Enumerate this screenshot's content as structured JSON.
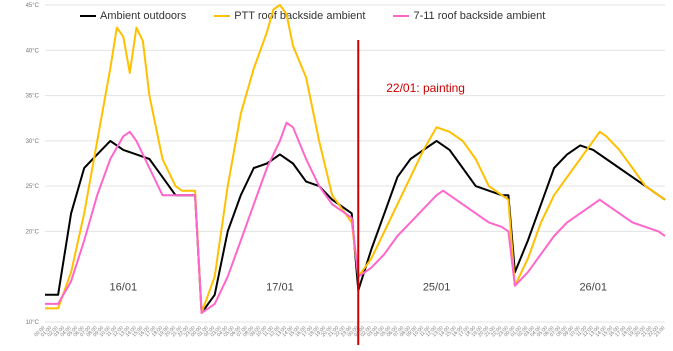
{
  "chart_data": {
    "type": "line",
    "legend_position": "top",
    "grid": true,
    "ylim": [
      10,
      45
    ],
    "y_ticks": [
      "10°C",
      "20°C",
      "25°C",
      "30°C",
      "35°C",
      "40°C",
      "45°C"
    ],
    "y_tick_values": [
      10,
      20,
      25,
      30,
      35,
      40,
      45
    ],
    "x_tick_labels": [
      "00:00",
      "01:00",
      "02:00",
      "03:00",
      "04:00",
      "05:00",
      "06:00",
      "07:00",
      "08:00",
      "09:00",
      "10:00",
      "11:00",
      "12:00",
      "13:00",
      "14:00",
      "15:00",
      "16:00",
      "17:00",
      "18:00",
      "19:00",
      "20:00",
      "21:00",
      "22:00",
      "23:00",
      "00:00",
      "01:00",
      "02:00",
      "03:00",
      "04:00",
      "05:00",
      "06:00",
      "07:00",
      "08:00",
      "09:00",
      "10:00",
      "11:00",
      "12:00",
      "13:00",
      "14:00",
      "15:00",
      "16:00",
      "17:00",
      "18:00",
      "19:00",
      "20:00",
      "21:00",
      "22:00",
      "23:00",
      "00:00",
      "01:00",
      "02:00",
      "03:00",
      "04:00",
      "05:00",
      "06:00",
      "07:00",
      "08:00",
      "09:00",
      "10:00",
      "11:00",
      "12:00",
      "13:00",
      "14:00",
      "15:00",
      "16:00",
      "17:00",
      "18:00",
      "19:00",
      "20:00",
      "21:00",
      "22:00",
      "23:00",
      "00:00",
      "01:00",
      "02:00",
      "03:00",
      "04:00",
      "05:00",
      "06:00",
      "07:00",
      "08:00",
      "09:00",
      "10:00",
      "11:00",
      "12:00",
      "13:00",
      "14:00",
      "15:00",
      "16:00",
      "17:00",
      "18:00",
      "19:00",
      "20:00",
      "21:00",
      "22:00",
      "23:00"
    ],
    "day_labels": [
      {
        "label": "16/01",
        "x": 12
      },
      {
        "label": "17/01",
        "x": 36
      },
      {
        "label": "25/01",
        "x": 60
      },
      {
        "label": "26/01",
        "x": 84
      }
    ],
    "series": [
      {
        "name": "Ambient outdoors",
        "color": "#000000",
        "points": [
          [
            0,
            13
          ],
          [
            2,
            13
          ],
          [
            4,
            22
          ],
          [
            6,
            27
          ],
          [
            8,
            28.5
          ],
          [
            10,
            30
          ],
          [
            12,
            29
          ],
          [
            14,
            28.5
          ],
          [
            16,
            28
          ],
          [
            18,
            26
          ],
          [
            20,
            24
          ],
          [
            22,
            24
          ],
          [
            23,
            24
          ],
          [
            24,
            11
          ],
          [
            26,
            13
          ],
          [
            28,
            20
          ],
          [
            30,
            24
          ],
          [
            32,
            27
          ],
          [
            34,
            27.5
          ],
          [
            36,
            28.5
          ],
          [
            38,
            27.5
          ],
          [
            40,
            25.5
          ],
          [
            42,
            25
          ],
          [
            44,
            23.5
          ],
          [
            46,
            22.5
          ],
          [
            47,
            22
          ],
          [
            48,
            13.5
          ],
          [
            50,
            18
          ],
          [
            52,
            22
          ],
          [
            54,
            26
          ],
          [
            56,
            28
          ],
          [
            58,
            29
          ],
          [
            60,
            30
          ],
          [
            62,
            29
          ],
          [
            64,
            27
          ],
          [
            66,
            25
          ],
          [
            68,
            24.5
          ],
          [
            70,
            24
          ],
          [
            71,
            24
          ],
          [
            72,
            15.5
          ],
          [
            74,
            19
          ],
          [
            76,
            23
          ],
          [
            78,
            27
          ],
          [
            80,
            28.5
          ],
          [
            82,
            29.5
          ],
          [
            84,
            29
          ],
          [
            86,
            28
          ],
          [
            88,
            27
          ],
          [
            90,
            26
          ],
          [
            92,
            25
          ],
          [
            94,
            24
          ],
          [
            95,
            23.5
          ]
        ]
      },
      {
        "name": "PTT roof backside ambient",
        "color": "#ffc000",
        "points": [
          [
            0,
            11.5
          ],
          [
            2,
            11.5
          ],
          [
            4,
            15.5
          ],
          [
            6,
            22
          ],
          [
            8,
            30
          ],
          [
            10,
            38
          ],
          [
            11,
            42.5
          ],
          [
            12,
            41.5
          ],
          [
            13,
            37.5
          ],
          [
            14,
            42.5
          ],
          [
            15,
            41
          ],
          [
            16,
            35
          ],
          [
            18,
            28
          ],
          [
            20,
            25
          ],
          [
            21,
            24.5
          ],
          [
            22,
            24.5
          ],
          [
            23,
            24.5
          ],
          [
            24,
            11
          ],
          [
            26,
            15
          ],
          [
            28,
            25
          ],
          [
            30,
            33
          ],
          [
            32,
            38
          ],
          [
            34,
            42
          ],
          [
            35,
            44.5
          ],
          [
            36,
            45
          ],
          [
            37,
            44
          ],
          [
            38,
            40.5
          ],
          [
            40,
            37
          ],
          [
            42,
            30
          ],
          [
            44,
            24
          ],
          [
            46,
            22
          ],
          [
            47,
            21
          ],
          [
            48,
            15
          ],
          [
            50,
            17
          ],
          [
            52,
            20
          ],
          [
            54,
            23
          ],
          [
            56,
            26
          ],
          [
            58,
            29
          ],
          [
            60,
            31.5
          ],
          [
            62,
            31
          ],
          [
            64,
            30
          ],
          [
            66,
            28
          ],
          [
            68,
            25
          ],
          [
            70,
            24
          ],
          [
            71,
            23.5
          ],
          [
            72,
            14
          ],
          [
            74,
            17
          ],
          [
            76,
            21
          ],
          [
            78,
            24
          ],
          [
            80,
            26
          ],
          [
            82,
            28
          ],
          [
            84,
            30
          ],
          [
            85,
            31
          ],
          [
            86,
            30.5
          ],
          [
            88,
            29
          ],
          [
            90,
            27
          ],
          [
            92,
            25
          ],
          [
            94,
            24
          ],
          [
            95,
            23.5
          ]
        ]
      },
      {
        "name": "7-11 roof backside ambient",
        "color": "#ff66cc",
        "points": [
          [
            0,
            12
          ],
          [
            2,
            12
          ],
          [
            4,
            14.5
          ],
          [
            6,
            19
          ],
          [
            8,
            24
          ],
          [
            10,
            28
          ],
          [
            12,
            30.5
          ],
          [
            13,
            31
          ],
          [
            14,
            30
          ],
          [
            16,
            27
          ],
          [
            18,
            24
          ],
          [
            20,
            24
          ],
          [
            22,
            24
          ],
          [
            23,
            24
          ],
          [
            24,
            11
          ],
          [
            26,
            12
          ],
          [
            28,
            15
          ],
          [
            30,
            19
          ],
          [
            32,
            23
          ],
          [
            34,
            27
          ],
          [
            36,
            30
          ],
          [
            37,
            32
          ],
          [
            38,
            31.5
          ],
          [
            40,
            28
          ],
          [
            42,
            25
          ],
          [
            44,
            23
          ],
          [
            46,
            22
          ],
          [
            47,
            21.5
          ],
          [
            48,
            15
          ],
          [
            50,
            16
          ],
          [
            52,
            17.5
          ],
          [
            54,
            19.5
          ],
          [
            56,
            21
          ],
          [
            58,
            22.5
          ],
          [
            60,
            24
          ],
          [
            61,
            24.5
          ],
          [
            62,
            24
          ],
          [
            64,
            23
          ],
          [
            66,
            22
          ],
          [
            68,
            21
          ],
          [
            70,
            20.5
          ],
          [
            71,
            20
          ],
          [
            72,
            14
          ],
          [
            74,
            15.5
          ],
          [
            76,
            17.5
          ],
          [
            78,
            19.5
          ],
          [
            80,
            21
          ],
          [
            82,
            22
          ],
          [
            84,
            23
          ],
          [
            85,
            23.5
          ],
          [
            86,
            23
          ],
          [
            88,
            22
          ],
          [
            90,
            21
          ],
          [
            92,
            20.5
          ],
          [
            94,
            20
          ],
          [
            95,
            19.5
          ]
        ]
      }
    ],
    "annotations": [
      {
        "text": "22/01: painting",
        "x": 48,
        "color": "#cc0000"
      }
    ]
  }
}
